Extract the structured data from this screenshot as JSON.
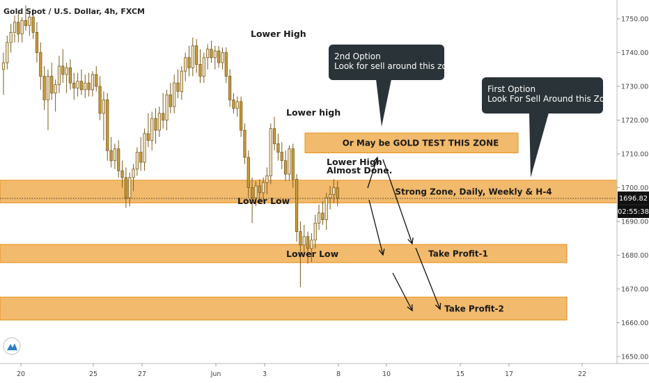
{
  "header": {
    "symbol_title": "Gold Spot / U.S. Dollar, 4h, FXCM"
  },
  "price_badge": {
    "value": "1696.82",
    "countdown": "02:55:38"
  },
  "colors": {
    "zone_fill": "#f0b460",
    "zone_border": "#e8901a",
    "bull_body": "#f2e6c8",
    "bear_body": "#c79a3e",
    "candle_outline": "#7a5a1c",
    "bubble_fill": "#2a3337",
    "price_badge": "#111111",
    "arrow": "#111111"
  },
  "chart_data": {
    "type": "candlestick",
    "y_axis": {
      "min": 1648,
      "max": 1756,
      "ticks": [
        1650,
        1660,
        1670,
        1680,
        1690,
        1700,
        1710,
        1720,
        1730,
        1740,
        1750
      ],
      "tick_labels": [
        "1650.00",
        "1660.00",
        "1670.00",
        "1680.00",
        "1690.00",
        "1700.00",
        "1710.00",
        "1720.00",
        "1730.00",
        "1740.00",
        "1750.00"
      ],
      "partially_hidden_label": "1690.00"
    },
    "x_axis": {
      "labels": [
        "20",
        "25",
        "27",
        "Jun",
        "3",
        "8",
        "10",
        "15",
        "17",
        "22"
      ]
    },
    "zones": [
      {
        "name": "Or May be GOLD TEST THIS ZONE",
        "low": 1710.3,
        "high": 1716.2,
        "x_start": 71.6,
        "x_end": 121.5
      },
      {
        "name": "Strong Zone, Daily, Weekly & H-4",
        "low": 1695.5,
        "high": 1702.2,
        "x_start": 0,
        "x_end": 130
      },
      {
        "name": "Take Profit-1",
        "low": 1677.8,
        "high": 1683.2,
        "x_start": 0,
        "x_end": 130
      },
      {
        "name": "Take Profit-2",
        "low": 1660.8,
        "high": 1667.6,
        "x_start": 0,
        "x_end": 130
      }
    ],
    "current_price": 1696.82,
    "annotations": [
      {
        "text": "Lower High",
        "x": 61,
        "price": 1745.4
      },
      {
        "text": "Lower high",
        "x": 71.5,
        "price": 1721.9
      },
      {
        "text": "Lower Low",
        "x": 60.5,
        "price": 1697.5
      },
      {
        "text": "Lower Low",
        "x": 71,
        "price": 1679.8
      },
      {
        "text": "Lower High",
        "x": 82,
        "price": 1707.8
      },
      {
        "text": "Almost Done.",
        "x": 82,
        "price": 1705.4
      }
    ],
    "callouts": [
      {
        "lines": [
          "2nd Option",
          "Look for sell around this zone."
        ],
        "x_start": 77.5,
        "x_end": 104.5,
        "price_top": 1737.7,
        "price_bottom": 1728.4,
        "tail_x": 89.5,
        "tail_price": 1716.6
      },
      {
        "lines": [
          "First Option",
          "Look For Sell Around this Zone."
        ],
        "x_start": 113.5,
        "x_end": 142.5,
        "price_top": 1731.4,
        "price_bottom": 1722.2,
        "tail_x": 124.7,
        "tail_price": 1702.8
      },
      {
        "lines": [],
        "x_start": 0,
        "x_end": 0,
        "price_top": 0,
        "price_bottom": 0,
        "tail_x": 0,
        "tail_price": 0
      }
    ],
    "arrows": [
      [
        {
          "x": 85,
          "price": 1699
        },
        {
          "x": 88,
          "price": 1709
        }
      ],
      [
        {
          "x": 88,
          "price": 1709
        },
        {
          "x": 96,
          "price": 1684
        }
      ],
      [
        {
          "x": 86,
          "price": 1697
        },
        {
          "x": 89.5,
          "price": 1681.5
        }
      ],
      [
        {
          "x": 97.5,
          "price": 1682.5
        },
        {
          "x": 103,
          "price": 1664.5
        }
      ],
      [
        {
          "x": 91,
          "price": 1675
        },
        {
          "x": 96,
          "price": 1664
        }
      ]
    ],
    "candles": [
      {
        "x": 0,
        "o": 1735.0,
        "h": 1740.0,
        "l": 1727.5,
        "c": 1737.0
      },
      {
        "x": 1,
        "o": 1737.0,
        "h": 1745.0,
        "l": 1735.0,
        "c": 1743.0
      },
      {
        "x": 2,
        "o": 1743.0,
        "h": 1748.5,
        "l": 1740.0,
        "c": 1746.0
      },
      {
        "x": 3,
        "o": 1746.0,
        "h": 1751.0,
        "l": 1743.0,
        "c": 1749.0
      },
      {
        "x": 4,
        "o": 1749.0,
        "h": 1752.5,
        "l": 1743.0,
        "c": 1745.5
      },
      {
        "x": 5,
        "o": 1745.5,
        "h": 1750.5,
        "l": 1743.0,
        "c": 1749.5
      },
      {
        "x": 6,
        "o": 1749.5,
        "h": 1754.0,
        "l": 1746.5,
        "c": 1748.0
      },
      {
        "x": 7,
        "o": 1748.0,
        "h": 1752.0,
        "l": 1745.0,
        "c": 1750.5
      },
      {
        "x": 8,
        "o": 1750.5,
        "h": 1753.0,
        "l": 1744.0,
        "c": 1746.0
      },
      {
        "x": 9,
        "o": 1746.0,
        "h": 1749.0,
        "l": 1737.0,
        "c": 1740.0
      },
      {
        "x": 10,
        "o": 1740.0,
        "h": 1743.0,
        "l": 1729.0,
        "c": 1733.0
      },
      {
        "x": 11,
        "o": 1733.0,
        "h": 1736.0,
        "l": 1723.0,
        "c": 1726.0
      },
      {
        "x": 12,
        "o": 1726.0,
        "h": 1735.0,
        "l": 1717.0,
        "c": 1733.0
      },
      {
        "x": 13,
        "o": 1733.0,
        "h": 1737.0,
        "l": 1726.0,
        "c": 1728.0
      },
      {
        "x": 14,
        "o": 1728.0,
        "h": 1732.0,
        "l": 1722.5,
        "c": 1730.5
      },
      {
        "x": 15,
        "o": 1730.5,
        "h": 1739.0,
        "l": 1728.0,
        "c": 1736.0
      },
      {
        "x": 16,
        "o": 1736.0,
        "h": 1741.0,
        "l": 1731.0,
        "c": 1733.5
      },
      {
        "x": 17,
        "o": 1733.5,
        "h": 1737.0,
        "l": 1728.0,
        "c": 1735.5
      },
      {
        "x": 18,
        "o": 1735.5,
        "h": 1738.0,
        "l": 1729.0,
        "c": 1731.0
      },
      {
        "x": 19,
        "o": 1731.0,
        "h": 1734.0,
        "l": 1726.0,
        "c": 1729.5
      },
      {
        "x": 20,
        "o": 1729.5,
        "h": 1734.0,
        "l": 1727.0,
        "c": 1731.5
      },
      {
        "x": 21,
        "o": 1731.5,
        "h": 1735.0,
        "l": 1727.5,
        "c": 1729.0
      },
      {
        "x": 22,
        "o": 1729.0,
        "h": 1733.5,
        "l": 1726.5,
        "c": 1731.0
      },
      {
        "x": 23,
        "o": 1731.0,
        "h": 1734.0,
        "l": 1727.0,
        "c": 1729.0
      },
      {
        "x": 24,
        "o": 1729.0,
        "h": 1734.5,
        "l": 1727.0,
        "c": 1733.5
      },
      {
        "x": 25,
        "o": 1733.5,
        "h": 1736.0,
        "l": 1728.5,
        "c": 1730.0
      },
      {
        "x": 26,
        "o": 1730.0,
        "h": 1733.0,
        "l": 1720.0,
        "c": 1722.0
      },
      {
        "x": 27,
        "o": 1722.0,
        "h": 1728.5,
        "l": 1714.0,
        "c": 1726.0
      },
      {
        "x": 28,
        "o": 1726.0,
        "h": 1728.0,
        "l": 1708.0,
        "c": 1711.0
      },
      {
        "x": 29,
        "o": 1711.0,
        "h": 1715.0,
        "l": 1706.0,
        "c": 1708.0
      },
      {
        "x": 30,
        "o": 1708.0,
        "h": 1713.0,
        "l": 1705.5,
        "c": 1711.5
      },
      {
        "x": 31,
        "o": 1711.5,
        "h": 1714.0,
        "l": 1703.0,
        "c": 1705.0
      },
      {
        "x": 32,
        "o": 1705.0,
        "h": 1708.0,
        "l": 1700.0,
        "c": 1703.0
      },
      {
        "x": 33,
        "o": 1703.0,
        "h": 1706.0,
        "l": 1694.0,
        "c": 1697.0
      },
      {
        "x": 34,
        "o": 1697.0,
        "h": 1704.5,
        "l": 1694.5,
        "c": 1703.0
      },
      {
        "x": 35,
        "o": 1703.0,
        "h": 1707.0,
        "l": 1699.0,
        "c": 1705.5
      },
      {
        "x": 36,
        "o": 1705.5,
        "h": 1712.0,
        "l": 1703.5,
        "c": 1710.5
      },
      {
        "x": 37,
        "o": 1710.5,
        "h": 1715.0,
        "l": 1705.0,
        "c": 1707.5
      },
      {
        "x": 38,
        "o": 1707.5,
        "h": 1717.5,
        "l": 1705.0,
        "c": 1716.0
      },
      {
        "x": 39,
        "o": 1716.0,
        "h": 1722.0,
        "l": 1712.0,
        "c": 1714.0
      },
      {
        "x": 40,
        "o": 1714.0,
        "h": 1722.5,
        "l": 1711.0,
        "c": 1720.5
      },
      {
        "x": 41,
        "o": 1720.5,
        "h": 1723.5,
        "l": 1713.0,
        "c": 1717.0
      },
      {
        "x": 42,
        "o": 1717.0,
        "h": 1724.0,
        "l": 1715.0,
        "c": 1722.0
      },
      {
        "x": 43,
        "o": 1722.0,
        "h": 1728.0,
        "l": 1717.5,
        "c": 1720.0
      },
      {
        "x": 44,
        "o": 1720.0,
        "h": 1729.0,
        "l": 1717.0,
        "c": 1727.5
      },
      {
        "x": 45,
        "o": 1727.5,
        "h": 1731.0,
        "l": 1722.0,
        "c": 1724.0
      },
      {
        "x": 46,
        "o": 1724.0,
        "h": 1733.5,
        "l": 1722.0,
        "c": 1731.0
      },
      {
        "x": 47,
        "o": 1731.0,
        "h": 1735.0,
        "l": 1726.5,
        "c": 1728.5
      },
      {
        "x": 48,
        "o": 1728.5,
        "h": 1736.0,
        "l": 1726.0,
        "c": 1734.5
      },
      {
        "x": 49,
        "o": 1734.5,
        "h": 1740.0,
        "l": 1731.5,
        "c": 1738.5
      },
      {
        "x": 50,
        "o": 1738.5,
        "h": 1742.0,
        "l": 1733.0,
        "c": 1735.5
      },
      {
        "x": 51,
        "o": 1735.5,
        "h": 1744.5,
        "l": 1733.0,
        "c": 1742.0
      },
      {
        "x": 52,
        "o": 1742.0,
        "h": 1744.0,
        "l": 1734.0,
        "c": 1736.5
      },
      {
        "x": 53,
        "o": 1736.5,
        "h": 1741.0,
        "l": 1731.0,
        "c": 1733.0
      },
      {
        "x": 54,
        "o": 1733.0,
        "h": 1740.0,
        "l": 1731.0,
        "c": 1738.5
      },
      {
        "x": 55,
        "o": 1738.5,
        "h": 1742.5,
        "l": 1735.0,
        "c": 1741.0
      },
      {
        "x": 56,
        "o": 1741.0,
        "h": 1743.5,
        "l": 1737.0,
        "c": 1738.5
      },
      {
        "x": 57,
        "o": 1738.5,
        "h": 1742.0,
        "l": 1735.0,
        "c": 1740.5
      },
      {
        "x": 58,
        "o": 1740.5,
        "h": 1742.0,
        "l": 1735.5,
        "c": 1737.0
      },
      {
        "x": 59,
        "o": 1737.0,
        "h": 1741.5,
        "l": 1735.0,
        "c": 1740.0
      },
      {
        "x": 60,
        "o": 1740.0,
        "h": 1741.5,
        "l": 1731.0,
        "c": 1733.0
      },
      {
        "x": 61,
        "o": 1733.0,
        "h": 1735.0,
        "l": 1724.0,
        "c": 1726.0
      },
      {
        "x": 62,
        "o": 1726.0,
        "h": 1728.0,
        "l": 1722.0,
        "c": 1723.5
      },
      {
        "x": 63,
        "o": 1723.5,
        "h": 1727.0,
        "l": 1721.0,
        "c": 1725.5
      },
      {
        "x": 64,
        "o": 1725.5,
        "h": 1727.0,
        "l": 1715.0,
        "c": 1717.0
      },
      {
        "x": 65,
        "o": 1717.0,
        "h": 1719.0,
        "l": 1707.0,
        "c": 1709.0
      },
      {
        "x": 66,
        "o": 1709.0,
        "h": 1711.0,
        "l": 1697.0,
        "c": 1700.0
      },
      {
        "x": 67,
        "o": 1700.0,
        "h": 1703.0,
        "l": 1689.5,
        "c": 1697.0
      },
      {
        "x": 68,
        "o": 1697.0,
        "h": 1702.0,
        "l": 1694.5,
        "c": 1700.5
      },
      {
        "x": 69,
        "o": 1700.5,
        "h": 1702.5,
        "l": 1695.5,
        "c": 1698.5
      },
      {
        "x": 70,
        "o": 1698.5,
        "h": 1703.0,
        "l": 1696.0,
        "c": 1701.5
      },
      {
        "x": 71,
        "o": 1701.5,
        "h": 1706.0,
        "l": 1698.0,
        "c": 1703.5
      },
      {
        "x": 72,
        "o": 1703.5,
        "h": 1719.0,
        "l": 1701.0,
        "c": 1717.5
      },
      {
        "x": 73,
        "o": 1717.5,
        "h": 1721.0,
        "l": 1711.0,
        "c": 1713.0
      },
      {
        "x": 74,
        "o": 1713.0,
        "h": 1716.0,
        "l": 1708.0,
        "c": 1710.5
      },
      {
        "x": 75,
        "o": 1710.5,
        "h": 1713.5,
        "l": 1705.5,
        "c": 1708.0
      },
      {
        "x": 76,
        "o": 1708.0,
        "h": 1711.0,
        "l": 1702.0,
        "c": 1704.0
      },
      {
        "x": 77,
        "o": 1704.0,
        "h": 1712.5,
        "l": 1702.0,
        "c": 1711.5
      },
      {
        "x": 78,
        "o": 1711.5,
        "h": 1713.0,
        "l": 1700.0,
        "c": 1702.5
      },
      {
        "x": 79,
        "o": 1702.5,
        "h": 1704.0,
        "l": 1684.0,
        "c": 1687.0
      },
      {
        "x": 80,
        "o": 1687.0,
        "h": 1690.0,
        "l": 1670.5,
        "c": 1683.0
      },
      {
        "x": 81,
        "o": 1683.0,
        "h": 1689.0,
        "l": 1681.0,
        "c": 1685.5
      },
      {
        "x": 82,
        "o": 1685.5,
        "h": 1687.0,
        "l": 1677.5,
        "c": 1682.0
      },
      {
        "x": 83,
        "o": 1682.0,
        "h": 1686.5,
        "l": 1678.0,
        "c": 1684.5
      },
      {
        "x": 84,
        "o": 1684.5,
        "h": 1692.0,
        "l": 1682.0,
        "c": 1689.5
      },
      {
        "x": 85,
        "o": 1689.5,
        "h": 1695.0,
        "l": 1687.5,
        "c": 1692.5
      },
      {
        "x": 86,
        "o": 1692.5,
        "h": 1696.0,
        "l": 1689.0,
        "c": 1690.5
      },
      {
        "x": 87,
        "o": 1690.5,
        "h": 1698.5,
        "l": 1687.5,
        "c": 1697.0
      },
      {
        "x": 88,
        "o": 1697.0,
        "h": 1700.5,
        "l": 1693.5,
        "c": 1698.0
      },
      {
        "x": 89,
        "o": 1698.0,
        "h": 1702.5,
        "l": 1695.5,
        "c": 1700.0
      },
      {
        "x": 90,
        "o": 1700.0,
        "h": 1702.0,
        "l": 1694.5,
        "c": 1696.8
      }
    ]
  }
}
